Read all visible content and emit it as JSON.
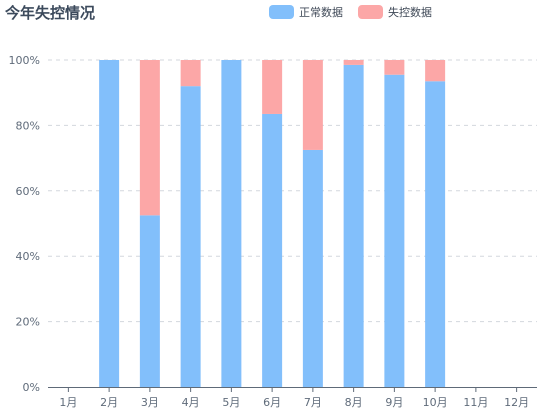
{
  "chart_data": {
    "type": "bar",
    "stacked": "percent",
    "title": "今年失控情况",
    "categories": [
      "1月",
      "2月",
      "3月",
      "4月",
      "5月",
      "6月",
      "7月",
      "8月",
      "9月",
      "10月",
      "11月",
      "12月"
    ],
    "series": [
      {
        "name": "正常数据",
        "color": "#82bffb",
        "values": [
          0,
          100,
          52.5,
          92,
          100,
          83.5,
          72.5,
          98.5,
          95.5,
          93.5,
          0,
          0
        ]
      },
      {
        "name": "失控数据",
        "color": "#fca7a7",
        "values": [
          0,
          0,
          47.5,
          8,
          0,
          16.5,
          27.5,
          1.5,
          4.5,
          6.5,
          0,
          0
        ]
      }
    ],
    "ylim": [
      0,
      100
    ],
    "yticks": [
      "0%",
      "20%",
      "40%",
      "60%",
      "80%",
      "100%"
    ],
    "grid": true,
    "legend_position": "top-right"
  }
}
